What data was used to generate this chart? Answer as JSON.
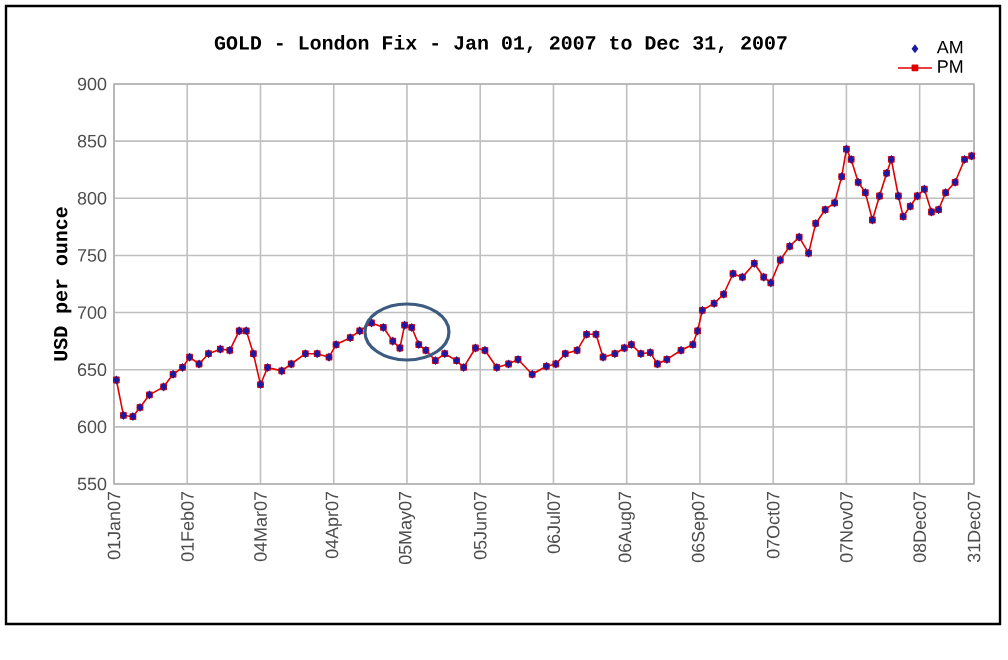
{
  "chart_data": {
    "type": "line",
    "title": "GOLD - London Fix - Jan 01, 2007 to Dec 31, 2007",
    "ylabel": "USD per ounce",
    "x": [
      "2007-01-02",
      "2007-01-05",
      "2007-01-09",
      "2007-01-12",
      "2007-01-16",
      "2007-01-22",
      "2007-01-26",
      "2007-01-30",
      "2007-02-02",
      "2007-02-06",
      "2007-02-10",
      "2007-02-15",
      "2007-02-19",
      "2007-02-23",
      "2007-02-26",
      "2007-03-01",
      "2007-03-04",
      "2007-03-07",
      "2007-03-13",
      "2007-03-17",
      "2007-03-23",
      "2007-03-28",
      "2007-04-02",
      "2007-04-05",
      "2007-04-11",
      "2007-04-15",
      "2007-04-20",
      "2007-04-25",
      "2007-04-29",
      "2007-05-02",
      "2007-05-04",
      "2007-05-07",
      "2007-05-10",
      "2007-05-13",
      "2007-05-17",
      "2007-05-21",
      "2007-05-26",
      "2007-05-29",
      "2007-06-03",
      "2007-06-07",
      "2007-06-12",
      "2007-06-17",
      "2007-06-21",
      "2007-06-27",
      "2007-07-03",
      "2007-07-07",
      "2007-07-11",
      "2007-07-16",
      "2007-07-20",
      "2007-07-24",
      "2007-07-27",
      "2007-08-01",
      "2007-08-05",
      "2007-08-08",
      "2007-08-12",
      "2007-08-16",
      "2007-08-19",
      "2007-08-23",
      "2007-08-29",
      "2007-09-03",
      "2007-09-05",
      "2007-09-07",
      "2007-09-12",
      "2007-09-16",
      "2007-09-20",
      "2007-09-24",
      "2007-09-29",
      "2007-10-03",
      "2007-10-06",
      "2007-10-10",
      "2007-10-14",
      "2007-10-18",
      "2007-10-22",
      "2007-10-25",
      "2007-10-29",
      "2007-11-02",
      "2007-11-05",
      "2007-11-07",
      "2007-11-09",
      "2007-11-12",
      "2007-11-15",
      "2007-11-18",
      "2007-11-21",
      "2007-11-24",
      "2007-11-26",
      "2007-11-29",
      "2007-12-01",
      "2007-12-04",
      "2007-12-07",
      "2007-12-10",
      "2007-12-13",
      "2007-12-16",
      "2007-12-19",
      "2007-12-23",
      "2007-12-27",
      "2007-12-30"
    ],
    "series": [
      {
        "name": "AM",
        "type": "scatter",
        "marker": "diamond",
        "color": "#1a1aa6",
        "values": [
          641,
          610,
          609,
          617,
          628,
          635,
          646,
          652,
          661,
          655,
          664,
          668,
          667,
          684,
          684,
          664,
          637,
          652,
          649,
          655,
          664,
          664,
          661,
          672,
          678,
          684,
          691,
          687,
          675,
          669,
          689,
          687,
          672,
          667,
          658,
          664,
          658,
          652,
          669,
          667,
          652,
          655,
          659,
          646,
          653,
          655,
          664,
          667,
          681,
          681,
          661,
          664,
          669,
          672,
          664,
          665,
          655,
          659,
          667,
          672,
          684,
          702,
          708,
          716,
          734,
          731,
          743,
          731,
          726,
          746,
          758,
          766,
          752,
          778,
          790,
          796,
          819,
          843,
          834,
          814,
          805,
          781,
          802,
          822,
          834,
          802,
          784,
          793,
          802,
          808,
          788,
          790,
          805,
          814,
          834,
          837
        ]
      },
      {
        "name": "PM",
        "type": "line",
        "marker": "square",
        "color": "#e00000",
        "values": [
          641,
          610,
          609,
          617,
          628,
          635,
          646,
          652,
          661,
          655,
          664,
          668,
          667,
          684,
          684,
          664,
          637,
          652,
          649,
          655,
          664,
          664,
          661,
          672,
          678,
          684,
          691,
          687,
          675,
          669,
          689,
          687,
          672,
          667,
          658,
          664,
          658,
          652,
          669,
          667,
          652,
          655,
          659,
          646,
          653,
          655,
          664,
          667,
          681,
          681,
          661,
          664,
          669,
          672,
          664,
          665,
          655,
          659,
          667,
          672,
          684,
          702,
          708,
          716,
          734,
          731,
          743,
          731,
          726,
          746,
          758,
          766,
          752,
          778,
          790,
          796,
          819,
          843,
          834,
          814,
          805,
          781,
          802,
          822,
          834,
          802,
          784,
          793,
          802,
          808,
          788,
          790,
          805,
          814,
          834,
          837
        ]
      }
    ],
    "xlim": [
      "2007-01-01",
      "2007-12-31"
    ],
    "xticks": [
      {
        "value": "2007-01-01",
        "label": "01Jan07"
      },
      {
        "value": "2007-02-01",
        "label": "01Feb07"
      },
      {
        "value": "2007-03-04",
        "label": "04Mar07"
      },
      {
        "value": "2007-04-04",
        "label": "04Apr07"
      },
      {
        "value": "2007-05-05",
        "label": "05May07"
      },
      {
        "value": "2007-06-05",
        "label": "05Jun07"
      },
      {
        "value": "2007-07-06",
        "label": "06Jul07"
      },
      {
        "value": "2007-08-06",
        "label": "06Aug07"
      },
      {
        "value": "2007-09-06",
        "label": "06Sep07"
      },
      {
        "value": "2007-10-07",
        "label": "07Oct07"
      },
      {
        "value": "2007-11-07",
        "label": "07Nov07"
      },
      {
        "value": "2007-12-08",
        "label": "08Dec07"
      },
      {
        "value": "2007-12-31",
        "label": "31Dec07"
      }
    ],
    "ylim": [
      550,
      900
    ],
    "yticks": [
      550,
      600,
      650,
      700,
      750,
      800,
      850,
      900
    ],
    "grid": true,
    "legend": "top right"
  }
}
